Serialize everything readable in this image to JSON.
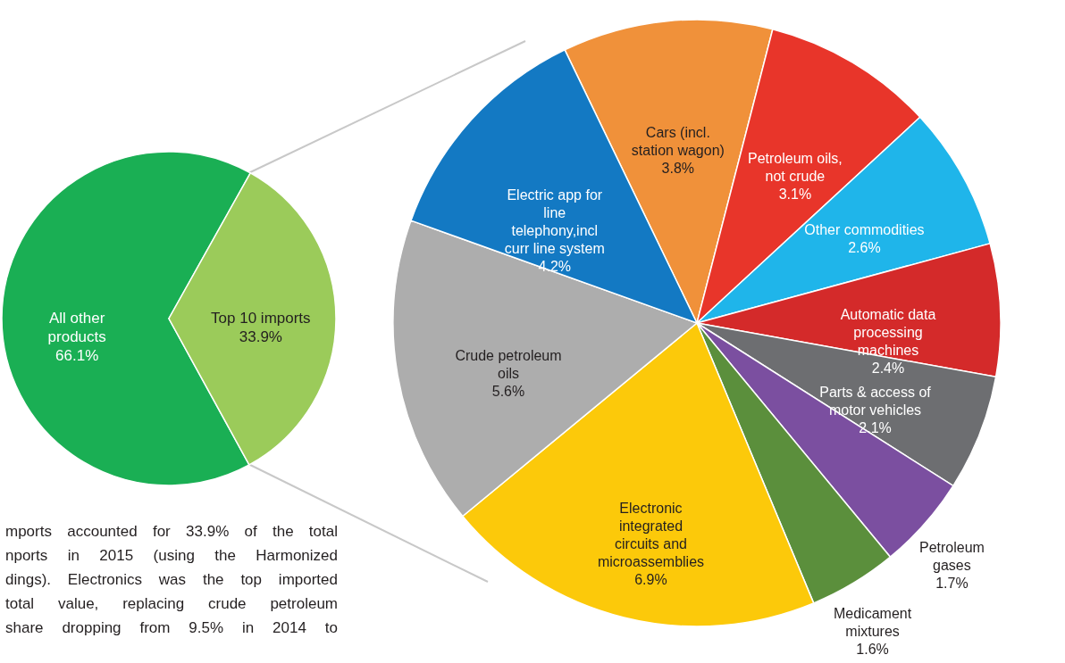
{
  "chart_data": [
    {
      "type": "pie",
      "categories": [
        "All other products",
        "Top 10 imports"
      ],
      "values": [
        66.1,
        33.9
      ],
      "colors": [
        "#1aaf54",
        "#9bcb5a"
      ],
      "value_labels": [
        "66.1%",
        "33.9%"
      ],
      "annotations": [
        "mports accounted for 33.9% of the total",
        "nports in 2015 (using the Harmonized",
        "dings). Electronics was the top imported",
        "total value, replacing crude petroleum",
        "share dropping from 9.5% in 2014 to"
      ]
    },
    {
      "type": "pie",
      "categories": [
        "Cars (incl. station wagon)",
        "Petroleum oils, not crude",
        "Other commodities",
        "Automatic data processing machines",
        "Parts & access of motor vehicles",
        "Petroleum gases",
        "Medicament mixtures",
        "Electronic integrated circuits and microassemblies",
        "Crude petroleum oils",
        "Electric app for line telephony,incl curr line system"
      ],
      "values": [
        3.8,
        3.1,
        2.6,
        2.4,
        2.1,
        1.7,
        1.6,
        6.9,
        5.6,
        4.2
      ],
      "colors": [
        "#f0913a",
        "#e8352a",
        "#1fb5ea",
        "#d42a2a",
        "#6d6e71",
        "#7b4fa0",
        "#5b8f3c",
        "#fcc90a",
        "#adadad",
        "#1379c3"
      ],
      "value_labels": [
        "3.8%",
        "3.1%",
        "2.6%",
        "2.4%",
        "2.1%",
        "1.7%",
        "1.6%",
        "6.9%",
        "5.6%",
        "4.2%"
      ]
    }
  ]
}
